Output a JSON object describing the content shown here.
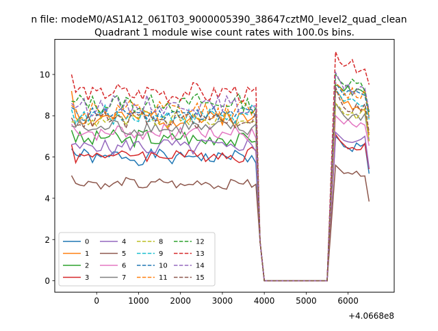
{
  "suptitle": "n file: modeM0/AS1A12_061T03_9000005390_38647cztM0_level2_quad_clean",
  "chart_data": {
    "type": "line",
    "title": "Quadrant 1 module wise count rates with 100.0s bins.",
    "xlabel": "",
    "ylabel": "",
    "x_offset_label": "+4.0668e8",
    "xlim": [
      -1000,
      7100
    ],
    "ylim": [
      -0.55,
      11.7
    ],
    "xticks": [
      0,
      1000,
      2000,
      3000,
      4000,
      5000,
      6000
    ],
    "yticks": [
      0,
      2,
      4,
      6,
      8,
      10
    ],
    "grid": false,
    "legend_placement": "lower-left",
    "legend_columns": 4,
    "series": [
      {
        "name": "0",
        "color": "#1f77b4",
        "dash": "solid",
        "base": 6.0,
        "amp": 0.3,
        "start": 6.4,
        "post": [
          7.0,
          6.8,
          6.5
        ]
      },
      {
        "name": "1",
        "color": "#ff7f0e",
        "dash": "solid",
        "base": 7.9,
        "amp": 0.45,
        "start": 9.2,
        "post": [
          9.2,
          9.0,
          8.6
        ]
      },
      {
        "name": "2",
        "color": "#2ca02c",
        "dash": "solid",
        "base": 6.9,
        "amp": 0.4,
        "start": 7.3,
        "post": [
          9.5,
          9.4,
          9.2
        ]
      },
      {
        "name": "3",
        "color": "#d62728",
        "dash": "solid",
        "base": 6.1,
        "amp": 0.35,
        "start": 6.6,
        "post": [
          7.1,
          6.8,
          6.6
        ]
      },
      {
        "name": "4",
        "color": "#9467bd",
        "dash": "solid",
        "base": 6.5,
        "amp": 0.35,
        "start": 6.6,
        "post": [
          7.2,
          7.0,
          6.8
        ]
      },
      {
        "name": "5",
        "color": "#8c564b",
        "dash": "solid",
        "base": 4.7,
        "amp": 0.2,
        "start": 5.1,
        "post": [
          5.6,
          5.4,
          5.2
        ]
      },
      {
        "name": "6",
        "color": "#e377c2",
        "dash": "solid",
        "base": 7.2,
        "amp": 0.35,
        "start": 7.6,
        "post": [
          8.0,
          7.8,
          7.6
        ]
      },
      {
        "name": "7",
        "color": "#7f7f7f",
        "dash": "solid",
        "base": 7.4,
        "amp": 0.35,
        "start": 7.5,
        "post": [
          8.6,
          8.3,
          8.0
        ]
      },
      {
        "name": "8",
        "color": "#bcbd22",
        "dash": "dashed",
        "base": 7.8,
        "amp": 0.35,
        "start": 7.7,
        "post": [
          8.6,
          8.4,
          8.1
        ]
      },
      {
        "name": "9",
        "color": "#17becf",
        "dash": "dashed",
        "base": 8.0,
        "amp": 0.4,
        "start": 8.3,
        "post": [
          9.3,
          9.0,
          8.7
        ]
      },
      {
        "name": "10",
        "color": "#1f77b4",
        "dash": "dashed",
        "base": 8.1,
        "amp": 0.35,
        "start": 8.4,
        "post": [
          9.6,
          9.3,
          9.0
        ]
      },
      {
        "name": "11",
        "color": "#ff7f0e",
        "dash": "dashed",
        "base": 8.2,
        "amp": 0.45,
        "start": 8.5,
        "post": [
          9.6,
          9.4,
          9.1
        ]
      },
      {
        "name": "12",
        "color": "#2ca02c",
        "dash": "dashed",
        "base": 8.6,
        "amp": 0.4,
        "start": 8.7,
        "post": [
          10.0,
          9.7,
          9.5
        ]
      },
      {
        "name": "13",
        "color": "#d62728",
        "dash": "dashed",
        "base": 9.1,
        "amp": 0.4,
        "start": 10.0,
        "post": [
          11.1,
          10.6,
          10.4
        ]
      },
      {
        "name": "14",
        "color": "#9467bd",
        "dash": "dashed",
        "base": 8.5,
        "amp": 0.4,
        "start": 8.6,
        "post": [
          10.1,
          9.7,
          9.3
        ]
      },
      {
        "name": "15",
        "color": "#8c564b",
        "dash": "dashed",
        "base": 7.8,
        "amp": 0.35,
        "start": 7.9,
        "post": [
          9.4,
          8.8,
          8.4
        ]
      }
    ]
  }
}
